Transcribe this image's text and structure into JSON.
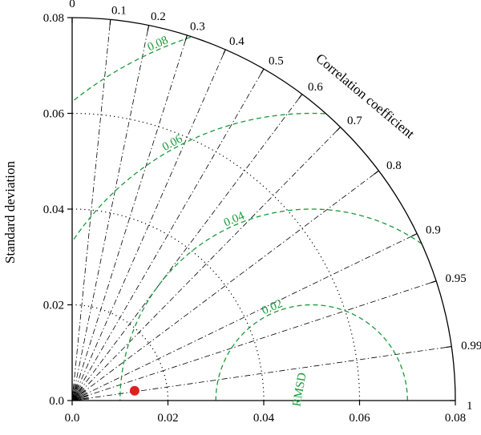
{
  "chart_data": {
    "type": "taylor_diagram",
    "ylabel": "Standard deviation",
    "arc_label": "Correlation coefficient",
    "rmsd_title": "RMSD",
    "reference_std": 0.05,
    "std_max": 0.08,
    "std_ticks": [
      0.0,
      0.02,
      0.04,
      0.06,
      0.08
    ],
    "std_tick_labels": [
      "0.0",
      "0.02",
      "0.04",
      "0.06",
      "0.08"
    ],
    "correlation_ticks": [
      0,
      0.1,
      0.2,
      0.3,
      0.4,
      0.5,
      0.6,
      0.7,
      0.8,
      0.9,
      0.95,
      0.99,
      1
    ],
    "correlation_tick_labels": [
      "0",
      "0.1",
      "0.2",
      "0.3",
      "0.4",
      "0.5",
      "0.6",
      "0.7",
      "0.8",
      "0.9",
      "0.95",
      "0.99",
      "1"
    ],
    "std_arcs_dotted": [
      0.02,
      0.04,
      0.06
    ],
    "rmsd_contours": [
      0.02,
      0.04,
      0.06,
      0.08
    ],
    "rmsd_labels": [
      "0.02",
      "0.04",
      "0.06",
      "0.08"
    ],
    "points": [
      {
        "std": 0.0132,
        "correlation": 0.988,
        "color": "#e02020"
      }
    ],
    "colors": {
      "rmsd": "#1a9a3a",
      "axes": "#000000",
      "point": "#e02020"
    }
  }
}
